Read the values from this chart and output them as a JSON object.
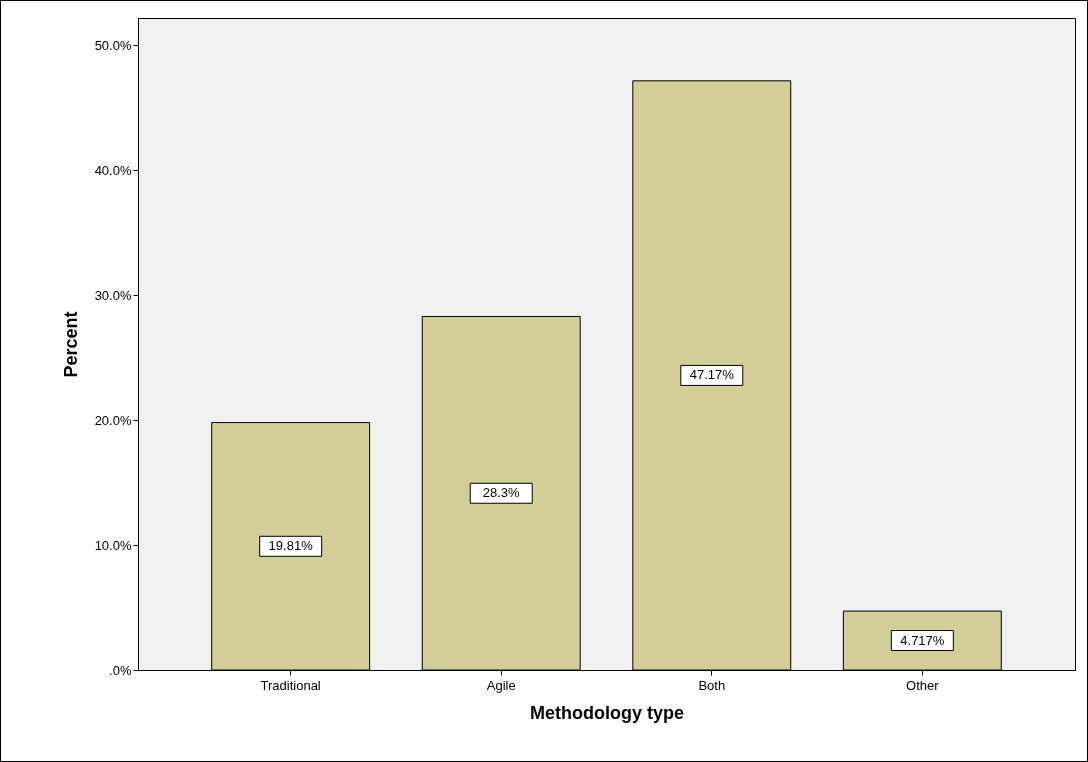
{
  "chart_data": {
    "type": "bar",
    "xlabel": "Methodology type",
    "ylabel": "Percent",
    "categories": [
      "Traditional",
      "Agile",
      "Both",
      "Other"
    ],
    "values": [
      19.81,
      28.3,
      47.17,
      4.717
    ],
    "value_labels": [
      "19.81%",
      "28.3%",
      "47.17%",
      "4.717%"
    ],
    "color": "#d3ce97",
    "ylim": [
      0,
      52.2
    ],
    "yticks": [
      {
        "value": 0,
        "label": ".0%"
      },
      {
        "value": 10,
        "label": "10.0%"
      },
      {
        "value": 20,
        "label": "20.0%"
      },
      {
        "value": 30,
        "label": "30.0%"
      },
      {
        "value": 40,
        "label": "40.0%"
      },
      {
        "value": 50,
        "label": "50.0%"
      }
    ],
    "grid": false
  }
}
